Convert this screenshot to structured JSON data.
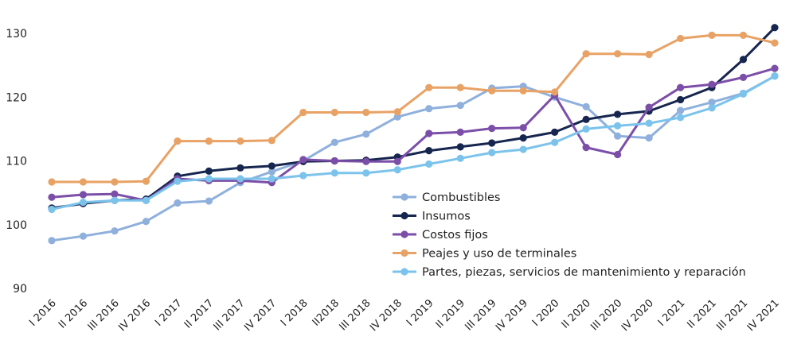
{
  "chart_data": {
    "type": "line",
    "title": "",
    "xlabel": "",
    "ylabel": "",
    "ylim": [
      90,
      130
    ],
    "yticks": [
      90,
      100,
      110,
      120,
      130
    ],
    "categories": [
      "I 2016",
      "II 2016",
      "III 2016",
      "IV 2016",
      "I 2017",
      "II 2017",
      "III 2017",
      "IV 2017",
      "I 2018",
      "II2018",
      "III 2018",
      "IV 2018",
      "I 2019",
      "II 2019",
      "III 2019",
      "IV 2019",
      "I 2020",
      "II 2020",
      "III 2020",
      "IV 2020",
      "I 2021",
      "II 2021",
      "III 2021",
      "IV 2021"
    ],
    "series": [
      {
        "name": "Combustibles",
        "color": "#8fb0dc",
        "values": [
          97.5,
          98.2,
          99.0,
          100.5,
          103.4,
          103.7,
          106.6,
          108.3,
          110.0,
          112.9,
          114.2,
          116.9,
          118.2,
          118.7,
          121.4,
          121.7,
          120.0,
          118.5,
          113.9,
          113.6,
          117.9,
          119.2,
          120.6,
          123.3
        ]
      },
      {
        "name": "Insumos",
        "color": "#16264f",
        "values": [
          102.6,
          103.3,
          103.8,
          104.0,
          107.6,
          108.4,
          108.9,
          109.2,
          109.9,
          110.0,
          110.1,
          110.6,
          111.6,
          112.2,
          112.8,
          113.6,
          114.5,
          116.5,
          117.3,
          117.8,
          119.6,
          121.5,
          125.9,
          130.9
        ]
      },
      {
        "name": "Costos fijos",
        "color": "#7b4fa8",
        "values": [
          104.3,
          104.7,
          104.8,
          103.8,
          107.2,
          106.9,
          106.9,
          106.6,
          110.2,
          110.0,
          109.9,
          109.9,
          114.3,
          114.5,
          115.1,
          115.2,
          120.3,
          112.1,
          111.0,
          118.4,
          121.5,
          122.0,
          123.1,
          124.5
        ]
      },
      {
        "name": "Peajes y uso de terminales",
        "color": "#e9a265",
        "values": [
          106.7,
          106.7,
          106.7,
          106.8,
          113.1,
          113.1,
          113.1,
          113.2,
          117.6,
          117.6,
          117.6,
          117.7,
          121.5,
          121.5,
          121.0,
          121.0,
          120.8,
          126.8,
          126.8,
          126.7,
          129.2,
          129.7,
          129.7,
          128.5
        ]
      },
      {
        "name": "Partes, piezas, servicios de mantenimiento y reparación",
        "color": "#7cc3ec",
        "values": [
          102.4,
          103.5,
          103.8,
          103.8,
          106.8,
          107.2,
          107.2,
          107.2,
          107.7,
          108.1,
          108.1,
          108.6,
          109.5,
          110.4,
          111.3,
          111.8,
          112.9,
          115.0,
          115.5,
          115.9,
          116.8,
          118.3,
          120.5,
          123.3
        ]
      }
    ]
  }
}
